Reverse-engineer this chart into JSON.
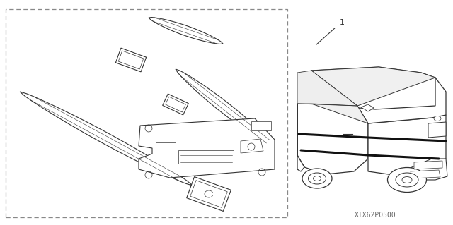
{
  "bg_color": "#ffffff",
  "border_color": "#666666",
  "line_color": "#333333",
  "fig_width": 6.4,
  "fig_height": 3.19,
  "dpi": 100,
  "watermark": "XTX62P0500",
  "part_number": "1"
}
